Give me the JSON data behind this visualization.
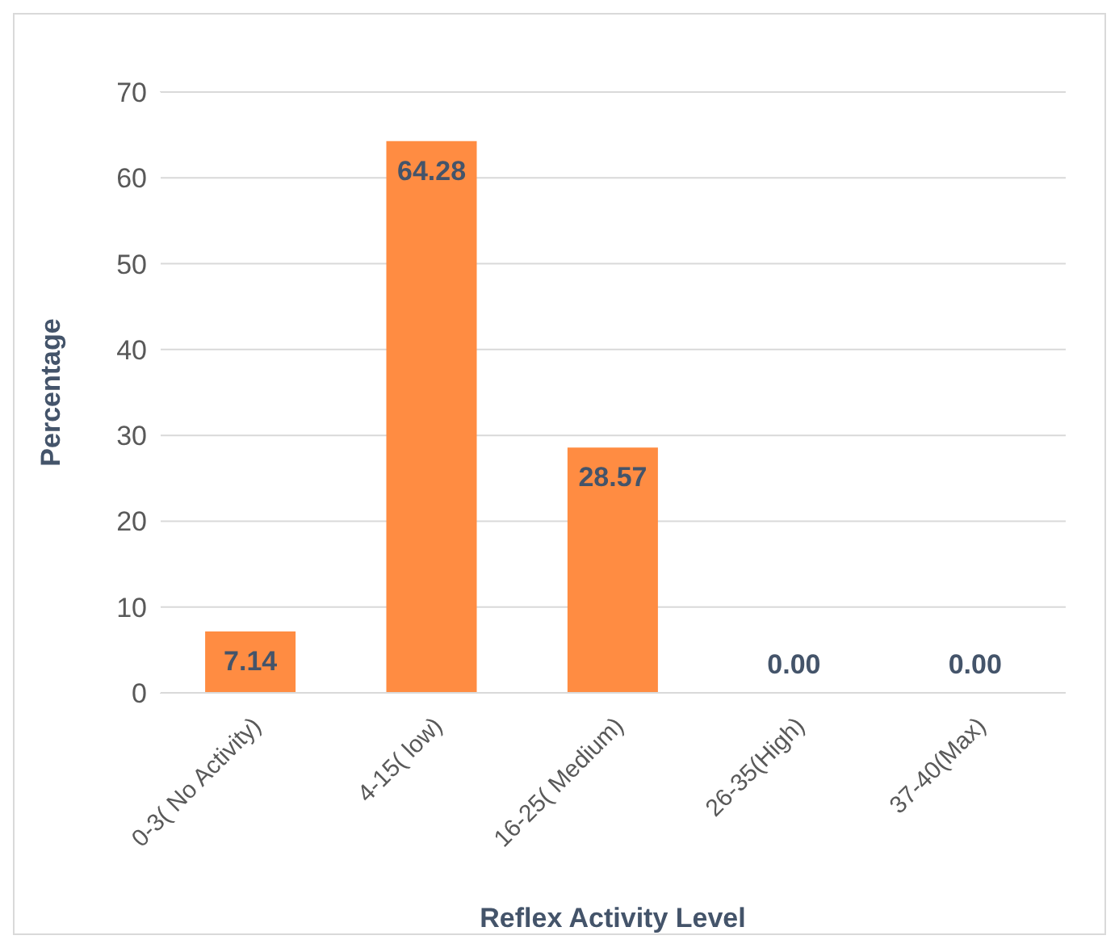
{
  "chart_data": {
    "type": "bar",
    "xlabel": "Reflex Activity Level",
    "ylabel": "Percentage",
    "categories": [
      "0-3( No Activity)",
      "4-15( low)",
      "16-25( Medium)",
      "26-35(High)",
      "37-40(Max)"
    ],
    "values": [
      7.14,
      64.28,
      28.57,
      0,
      0
    ],
    "value_labels": [
      "7.14",
      "64.28",
      "28.57",
      "0.00",
      "0.00"
    ],
    "color": "#ff8c42",
    "ylim": [
      0,
      70
    ],
    "yticks": [
      0,
      10,
      20,
      30,
      40,
      50,
      60,
      70
    ],
    "grid": "y"
  }
}
